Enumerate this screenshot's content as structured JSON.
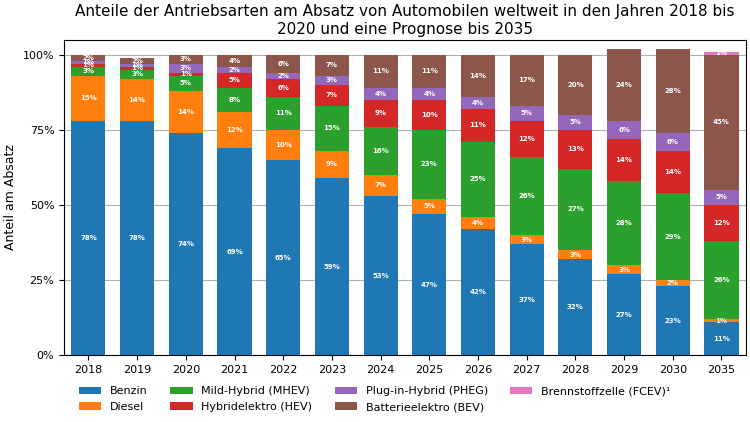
{
  "chart_data": {
    "type": "bar",
    "title": "Anteile der Antriebsarten am Absatz von Automobilen weltweit in den Jahren 2018 bis\n2020 und eine Prognose bis 2035",
    "y_label": "Anteil am Absatz",
    "categories": [
      "2018",
      "2019",
      "2020",
      "2021",
      "2022",
      "2023",
      "2024",
      "2025",
      "2026",
      "2027",
      "2028",
      "2029",
      "2030",
      "2035"
    ],
    "stacked": true,
    "data_labels": true,
    "grid": true,
    "legend": "lower center",
    "ylim": [
      0,
      105
    ],
    "yticks": [
      {
        "value": 0,
        "label": "0%"
      },
      {
        "value": 25,
        "label": "25%"
      },
      {
        "value": 50,
        "label": "50%"
      },
      {
        "value": 75,
        "label": "75%"
      },
      {
        "value": 100,
        "label": "100%"
      }
    ],
    "series": [
      {
        "name": "Benzin",
        "values": [
          78,
          78,
          74,
          69,
          65,
          59,
          53,
          47,
          42,
          37,
          32,
          27,
          23,
          11
        ],
        "value_labels": [
          "78%",
          "78%",
          "74%",
          "69%",
          "65%",
          "59%",
          "53%",
          "47%",
          "42%",
          "37%",
          "32%",
          "27%",
          "23%",
          "11%"
        ]
      },
      {
        "name": "Diesel",
        "values": [
          15,
          14,
          14,
          12,
          10,
          9,
          7,
          5,
          4,
          3,
          3,
          3,
          2,
          1
        ],
        "value_labels": [
          "15%",
          "14%",
          "14%",
          "12%",
          "10%",
          "9%",
          "7%",
          "5%",
          "4%",
          "3%",
          "3%",
          "3%",
          "2%",
          "1%"
        ]
      },
      {
        "name": "Mild-Hybrid (MHEV)",
        "values": [
          3,
          3,
          5,
          8,
          11,
          15,
          16,
          23,
          25,
          26,
          27,
          28,
          29,
          26
        ],
        "value_labels": [
          "3%",
          "3%",
          "5%",
          "8%",
          "11%",
          "15%",
          "16%",
          "23%",
          "25%",
          "26%",
          "27%",
          "28%",
          "29%",
          "26%"
        ]
      },
      {
        "name": "Hybridelektro (HEV)",
        "values": [
          1,
          1,
          1,
          5,
          6,
          7,
          9,
          10,
          11,
          12,
          13,
          14,
          14,
          12
        ],
        "value_labels": [
          "1%",
          "1%",
          "1%",
          "5%",
          "6%",
          "7%",
          "9%",
          "10%",
          "11%",
          "12%",
          "13%",
          "14%",
          "14%",
          "12%"
        ]
      },
      {
        "name": "Plug-in-Hybrid (PHEG)",
        "values": [
          1,
          1,
          3,
          2,
          2,
          3,
          4,
          4,
          4,
          5,
          5,
          6,
          6,
          5
        ],
        "value_labels": [
          "1%",
          "1%",
          "3%",
          "2%",
          "2%",
          "3%",
          "4%",
          "4%",
          "4%",
          "5%",
          "5%",
          "6%",
          "6%",
          "5%"
        ]
      },
      {
        "name": "Batterieelektro (BEV)",
        "values": [
          2,
          2,
          3,
          4,
          6,
          7,
          11,
          11,
          14,
          17,
          20,
          24,
          28,
          45
        ],
        "value_labels": [
          "2%",
          "2%",
          "3%",
          "4%",
          "6%",
          "7%",
          "11%",
          "11%",
          "14%",
          "17%",
          "20%",
          "24%",
          "28%",
          "45%"
        ]
      },
      {
        "name": "Brennstoffzelle (FCEV)¹",
        "values": [
          0,
          0,
          0,
          0,
          0,
          0,
          0,
          0,
          0,
          0,
          0,
          0,
          0,
          1
        ],
        "value_labels": [
          null,
          null,
          null,
          null,
          null,
          null,
          null,
          null,
          null,
          null,
          null,
          null,
          null,
          "1%"
        ]
      }
    ]
  }
}
